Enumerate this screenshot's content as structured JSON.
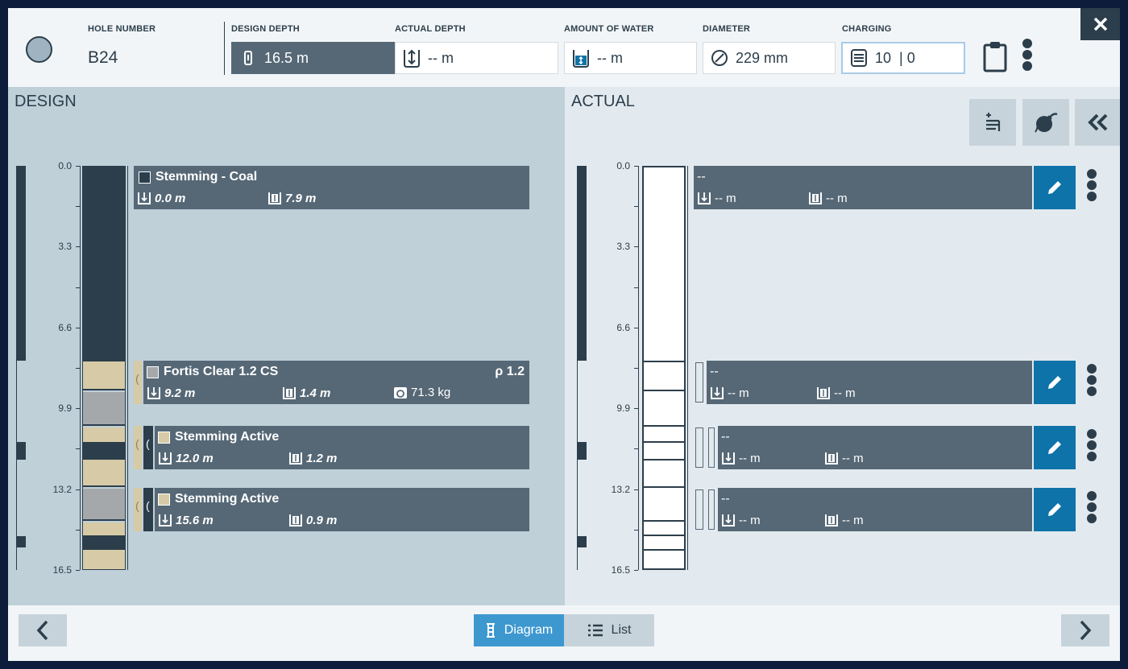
{
  "header": {
    "hole_number_label": "HOLE NUMBER",
    "hole_number": "B24",
    "design_depth_label": "DESIGN DEPTH",
    "design_depth": "16.5 m",
    "actual_depth_label": "ACTUAL DEPTH",
    "actual_depth": "-- m",
    "water_label": "AMOUNT OF WATER",
    "water": "-- m",
    "diameter_label": "DIAMETER",
    "diameter": "229 mm",
    "charging_label": "CHARGING",
    "charging": "10  | 0"
  },
  "design": {
    "title": "DESIGN",
    "ticks": [
      "0.0",
      "3.3",
      "6.6",
      "9.9",
      "13.2",
      "16.5"
    ],
    "decks": [
      {
        "name": "Stemming - Coal",
        "top": "0.0 m",
        "length": "7.9 m"
      },
      {
        "name": "Fortis Clear 1.2 CS",
        "top": "9.2 m",
        "length": "1.4 m",
        "mass": "71.3 kg",
        "density": "ρ 1.2"
      },
      {
        "name": "Stemming Active",
        "top": "12.0 m",
        "length": "1.2 m"
      },
      {
        "name": "Stemming Active",
        "top": "15.6 m",
        "length": "0.9 m"
      }
    ]
  },
  "actual": {
    "title": "ACTUAL",
    "ticks": [
      "0.0",
      "3.3",
      "6.6",
      "9.9",
      "13.2",
      "16.5"
    ],
    "decks": [
      {
        "name": "--",
        "top": "-- m",
        "length": "-- m"
      },
      {
        "name": "--",
        "top": "-- m",
        "length": "-- m"
      },
      {
        "name": "--",
        "top": "-- m",
        "length": "-- m"
      },
      {
        "name": "--",
        "top": "-- m",
        "length": "-- m"
      }
    ]
  },
  "footer": {
    "diagram_label": "Diagram",
    "list_label": "List"
  },
  "colors": {
    "dark": "#2c3e4b",
    "deck": "#566876",
    "stemming": "#d6cba6",
    "product": "#a5a8ab",
    "accent": "#0e73a8",
    "design_bg": "#bfd0d9",
    "actual_bg": "#e3eaef"
  },
  "icons": [
    "close-icon",
    "clipboard-icon",
    "kebab-icon",
    "depth-icon",
    "water-icon",
    "diameter-icon",
    "charging-icon",
    "add-deck-icon",
    "primer-icon",
    "collapse-icon",
    "pencil-icon",
    "chevron-left-icon",
    "chevron-right-icon",
    "list-icon",
    "diagram-icon"
  ]
}
